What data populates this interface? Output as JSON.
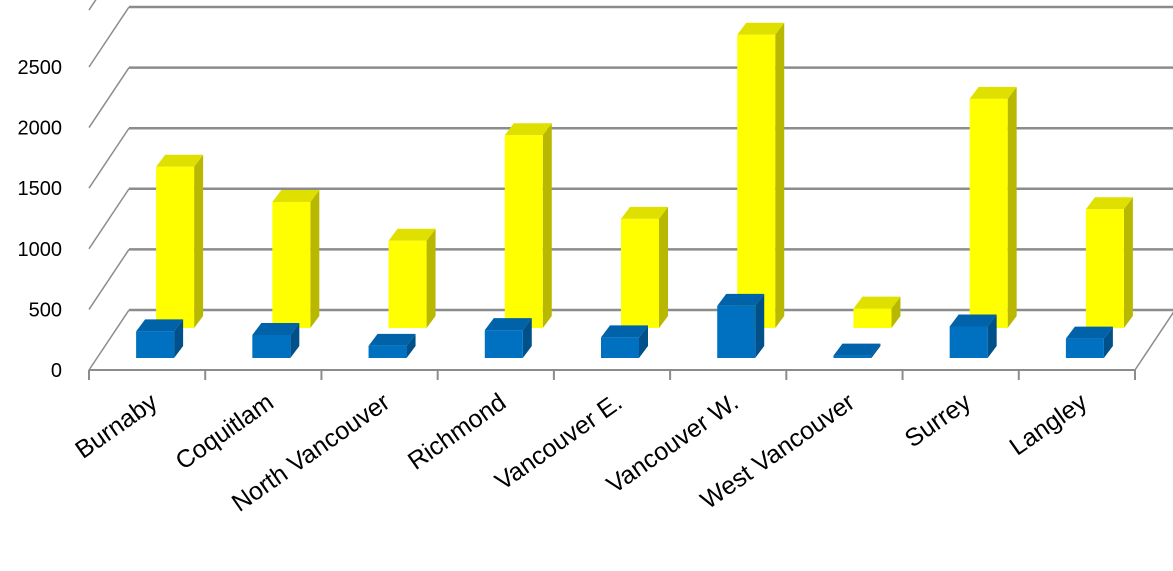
{
  "chart_data": {
    "type": "bar",
    "title": "",
    "xlabel": "",
    "ylabel": "",
    "ylim": [
      0,
      2500
    ],
    "yticks": [
      0,
      500,
      1000,
      1500,
      2000,
      2500
    ],
    "grid": true,
    "style": "3d-clustered-column",
    "categories": [
      "Burnaby",
      "Coquitlam",
      "North Vancouver",
      "Richmond",
      "Vancouver E.",
      "Vancouver W.",
      "West Vancouver",
      "Surrey",
      "Langley"
    ],
    "series": [
      {
        "values": [
          220,
          190,
          100,
          230,
          170,
          430,
          20,
          260,
          160
        ],
        "color": "#0070c0"
      },
      {
        "values": [
          1330,
          1040,
          720,
          1590,
          900,
          2420,
          160,
          1890,
          980
        ],
        "color": "#ffff00"
      }
    ]
  }
}
